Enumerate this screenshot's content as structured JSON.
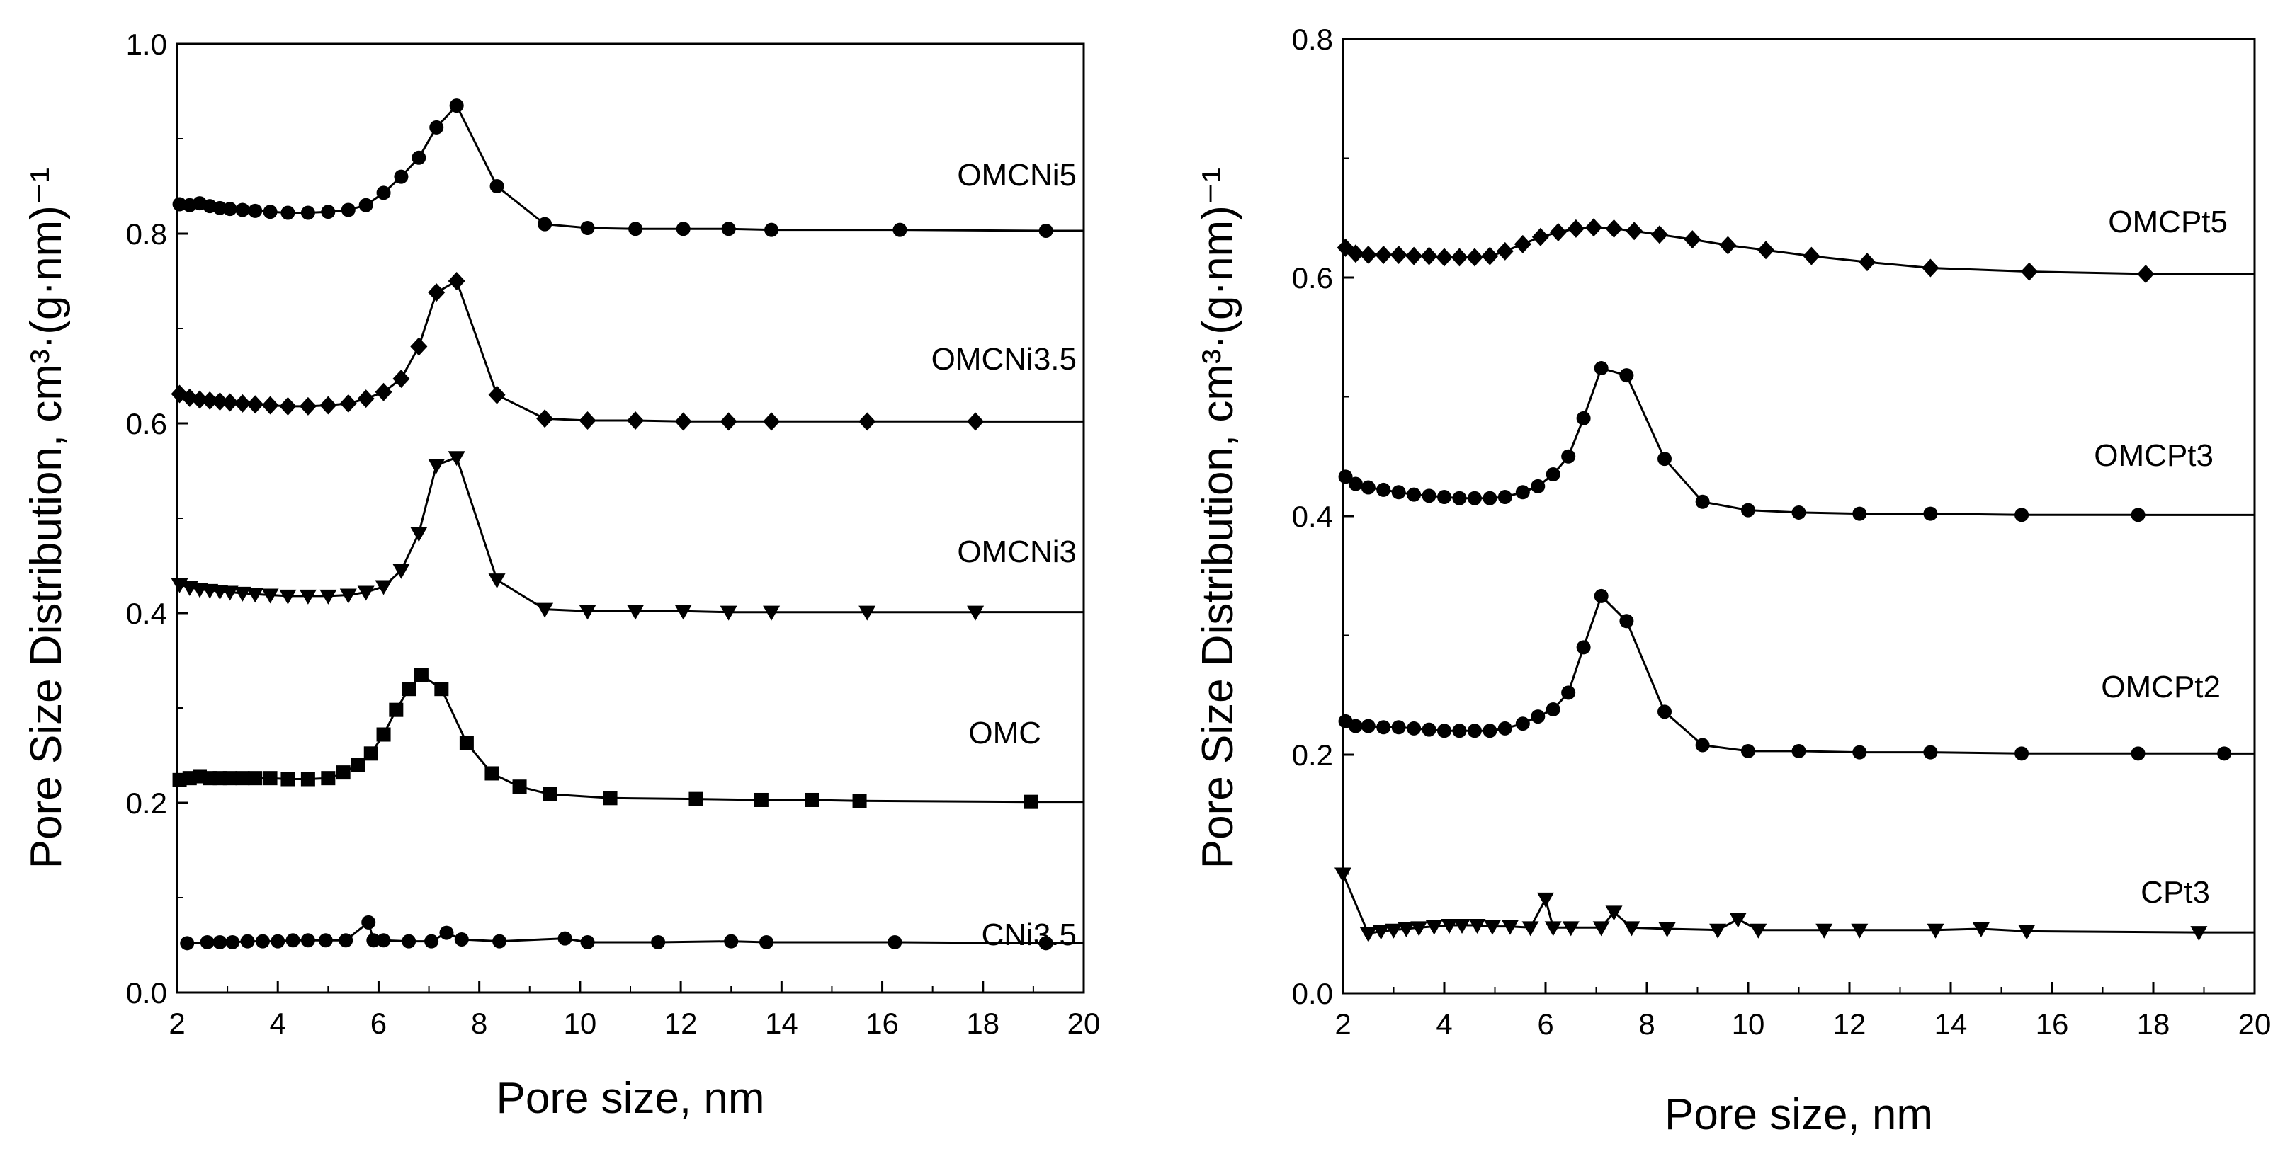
{
  "chart_data": [
    {
      "type": "line",
      "title": "",
      "xlabel": "Pore size, nm",
      "ylabel": "Pore Size Distribution, cm³·(g·nm)⁻¹",
      "xlim": [
        2,
        20
      ],
      "ylim": [
        0.0,
        1.0
      ],
      "xticks": [
        "2",
        "4",
        "6",
        "8",
        "10",
        "12",
        "14",
        "16",
        "18",
        "20"
      ],
      "yticks": [
        "0.0",
        "0.2",
        "0.4",
        "0.6",
        "0.8",
        "1.0"
      ],
      "series": [
        {
          "name": "OMCNi5",
          "marker": "circle",
          "x": [
            2.05,
            2.25,
            2.45,
            2.65,
            2.85,
            3.05,
            3.3,
            3.55,
            3.85,
            4.2,
            4.6,
            5.0,
            5.4,
            5.75,
            6.1,
            6.45,
            6.8,
            7.15,
            7.55,
            8.35,
            9.3,
            10.15,
            11.1,
            12.05,
            12.95,
            13.8,
            16.35,
            19.25
          ],
          "y": [
            0.831,
            0.83,
            0.832,
            0.829,
            0.827,
            0.826,
            0.825,
            0.824,
            0.823,
            0.822,
            0.822,
            0.823,
            0.825,
            0.83,
            0.843,
            0.86,
            0.88,
            0.912,
            0.935,
            0.85,
            0.81,
            0.806,
            0.805,
            0.805,
            0.805,
            0.804,
            0.804,
            0.803
          ]
        },
        {
          "name": "OMCNi3.5",
          "marker": "diamond",
          "x": [
            2.05,
            2.25,
            2.45,
            2.65,
            2.85,
            3.05,
            3.3,
            3.55,
            3.85,
            4.2,
            4.6,
            5.0,
            5.4,
            5.75,
            6.1,
            6.45,
            6.8,
            7.15,
            7.55,
            8.35,
            9.3,
            10.15,
            11.1,
            12.05,
            12.95,
            13.8,
            15.7,
            17.85
          ],
          "y": [
            0.631,
            0.627,
            0.625,
            0.624,
            0.623,
            0.622,
            0.621,
            0.62,
            0.619,
            0.618,
            0.618,
            0.619,
            0.621,
            0.626,
            0.633,
            0.647,
            0.681,
            0.738,
            0.75,
            0.63,
            0.605,
            0.603,
            0.603,
            0.602,
            0.602,
            0.602,
            0.602,
            0.602
          ]
        },
        {
          "name": "OMCNi3",
          "marker": "triangle-down",
          "x": [
            2.05,
            2.25,
            2.45,
            2.65,
            2.85,
            3.05,
            3.3,
            3.55,
            3.85,
            4.2,
            4.6,
            5.0,
            5.4,
            5.75,
            6.1,
            6.45,
            6.8,
            7.15,
            7.55,
            8.35,
            9.3,
            10.15,
            11.1,
            12.05,
            12.95,
            13.8,
            15.7,
            17.85
          ],
          "y": [
            0.43,
            0.427,
            0.425,
            0.424,
            0.423,
            0.422,
            0.421,
            0.42,
            0.419,
            0.418,
            0.418,
            0.418,
            0.419,
            0.422,
            0.428,
            0.445,
            0.484,
            0.556,
            0.564,
            0.435,
            0.404,
            0.402,
            0.402,
            0.402,
            0.401,
            0.401,
            0.401,
            0.401
          ]
        },
        {
          "name": "OMC",
          "marker": "square",
          "x": [
            2.05,
            2.25,
            2.45,
            2.65,
            2.85,
            3.05,
            3.3,
            3.55,
            3.85,
            4.2,
            4.6,
            5.0,
            5.3,
            5.6,
            5.85,
            6.1,
            6.35,
            6.6,
            6.85,
            7.25,
            7.75,
            8.25,
            8.8,
            9.4,
            10.6,
            12.3,
            13.6,
            14.6,
            15.55,
            18.95
          ],
          "y": [
            0.224,
            0.226,
            0.228,
            0.226,
            0.226,
            0.226,
            0.226,
            0.226,
            0.226,
            0.225,
            0.225,
            0.226,
            0.232,
            0.24,
            0.252,
            0.272,
            0.298,
            0.32,
            0.335,
            0.32,
            0.263,
            0.231,
            0.217,
            0.209,
            0.205,
            0.204,
            0.203,
            0.203,
            0.202,
            0.201
          ]
        },
        {
          "name": "CNi3.5",
          "marker": "circle",
          "x": [
            2.2,
            2.6,
            2.85,
            3.1,
            3.4,
            3.7,
            4.0,
            4.3,
            4.6,
            4.95,
            5.35,
            5.8,
            5.9,
            6.1,
            6.6,
            7.05,
            7.35,
            7.65,
            8.4,
            9.7,
            10.15,
            11.55,
            13.0,
            13.7,
            16.25,
            19.25
          ],
          "y": [
            0.052,
            0.053,
            0.053,
            0.053,
            0.054,
            0.054,
            0.054,
            0.055,
            0.055,
            0.055,
            0.055,
            0.074,
            0.055,
            0.055,
            0.054,
            0.054,
            0.063,
            0.056,
            0.054,
            0.057,
            0.053,
            0.053,
            0.054,
            0.053,
            0.053,
            0.052
          ]
        }
      ]
    },
    {
      "type": "line",
      "title": "",
      "xlabel": "Pore size, nm",
      "ylabel": "Pore Size Distribution, cm³·(g·nm)⁻¹",
      "xlim": [
        2,
        20
      ],
      "ylim": [
        0.0,
        0.8
      ],
      "xticks": [
        "2",
        "4",
        "6",
        "8",
        "10",
        "12",
        "14",
        "16",
        "18",
        "20"
      ],
      "yticks": [
        "0.0",
        "0.2",
        "0.4",
        "0.6",
        "0.8"
      ],
      "series": [
        {
          "name": "OMCPt5",
          "marker": "diamond",
          "x": [
            2.05,
            2.25,
            2.5,
            2.8,
            3.1,
            3.4,
            3.7,
            4.0,
            4.3,
            4.6,
            4.9,
            5.2,
            5.55,
            5.9,
            6.25,
            6.6,
            6.95,
            7.35,
            7.75,
            8.25,
            8.9,
            9.6,
            10.35,
            11.25,
            12.35,
            13.6,
            15.55,
            17.85
          ],
          "y": [
            0.625,
            0.62,
            0.619,
            0.619,
            0.619,
            0.618,
            0.618,
            0.617,
            0.617,
            0.617,
            0.618,
            0.622,
            0.628,
            0.634,
            0.638,
            0.641,
            0.642,
            0.641,
            0.639,
            0.636,
            0.632,
            0.627,
            0.623,
            0.618,
            0.613,
            0.608,
            0.605,
            0.603
          ]
        },
        {
          "name": "OMCPt3",
          "marker": "circle",
          "x": [
            2.05,
            2.25,
            2.5,
            2.8,
            3.1,
            3.4,
            3.7,
            4.0,
            4.3,
            4.6,
            4.9,
            5.2,
            5.55,
            5.85,
            6.15,
            6.45,
            6.75,
            7.1,
            7.6,
            8.35,
            9.1,
            10.0,
            11.0,
            12.2,
            13.6,
            15.4,
            17.7
          ],
          "y": [
            0.433,
            0.427,
            0.424,
            0.422,
            0.42,
            0.418,
            0.417,
            0.416,
            0.415,
            0.415,
            0.415,
            0.416,
            0.42,
            0.425,
            0.435,
            0.45,
            0.482,
            0.524,
            0.518,
            0.448,
            0.412,
            0.405,
            0.403,
            0.402,
            0.402,
            0.401,
            0.401
          ]
        },
        {
          "name": "OMCPt2",
          "marker": "circle",
          "x": [
            2.05,
            2.25,
            2.5,
            2.8,
            3.1,
            3.4,
            3.7,
            4.0,
            4.3,
            4.6,
            4.9,
            5.2,
            5.55,
            5.85,
            6.15,
            6.45,
            6.75,
            7.1,
            7.6,
            8.35,
            9.1,
            10.0,
            11.0,
            12.2,
            13.6,
            15.4,
            17.7,
            19.4
          ],
          "y": [
            0.228,
            0.224,
            0.224,
            0.223,
            0.223,
            0.222,
            0.221,
            0.22,
            0.22,
            0.22,
            0.22,
            0.222,
            0.226,
            0.232,
            0.238,
            0.252,
            0.29,
            0.333,
            0.312,
            0.236,
            0.208,
            0.203,
            0.203,
            0.202,
            0.202,
            0.201,
            0.201,
            0.201
          ]
        },
        {
          "name": "CPt3",
          "marker": "triangle-down",
          "x": [
            2.0,
            2.5,
            2.75,
            3.0,
            3.25,
            3.5,
            3.8,
            4.1,
            4.35,
            4.65,
            4.95,
            5.3,
            5.7,
            6.0,
            6.15,
            6.5,
            7.1,
            7.35,
            7.7,
            8.4,
            9.4,
            9.8,
            10.2,
            11.5,
            12.2,
            13.7,
            14.6,
            15.5,
            18.9
          ],
          "y": [
            0.1,
            0.05,
            0.052,
            0.053,
            0.054,
            0.055,
            0.056,
            0.057,
            0.057,
            0.057,
            0.056,
            0.056,
            0.055,
            0.079,
            0.055,
            0.055,
            0.055,
            0.068,
            0.055,
            0.054,
            0.053,
            0.062,
            0.053,
            0.053,
            0.053,
            0.053,
            0.054,
            0.052,
            0.051
          ]
        }
      ]
    }
  ]
}
